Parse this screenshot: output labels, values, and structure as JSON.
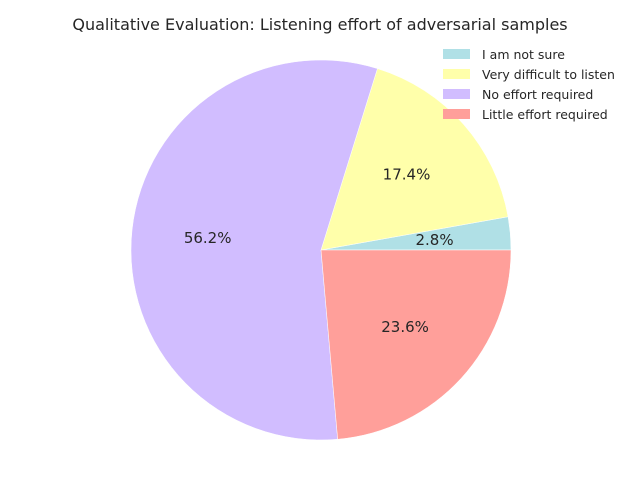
{
  "chart_data": {
    "type": "pie",
    "title": "Qualitative Evaluation: Listening effort of adversarial samples",
    "slices": [
      {
        "label": "I am not sure",
        "value": 2.8,
        "pct_label": "2.8%",
        "color": "#b0e0e6"
      },
      {
        "label": "Very difficult to listen",
        "value": 17.4,
        "pct_label": "17.4%",
        "color": "#ffffaa"
      },
      {
        "label": "No effort required",
        "value": 56.2,
        "pct_label": "56.2%",
        "color": "#d1bdff"
      },
      {
        "label": "Little effort required",
        "value": 23.6,
        "pct_label": "23.6%",
        "color": "#ff9f9a"
      }
    ],
    "start_angle_deg": 0,
    "direction": "counterclockwise",
    "legend_position": "top-right"
  }
}
